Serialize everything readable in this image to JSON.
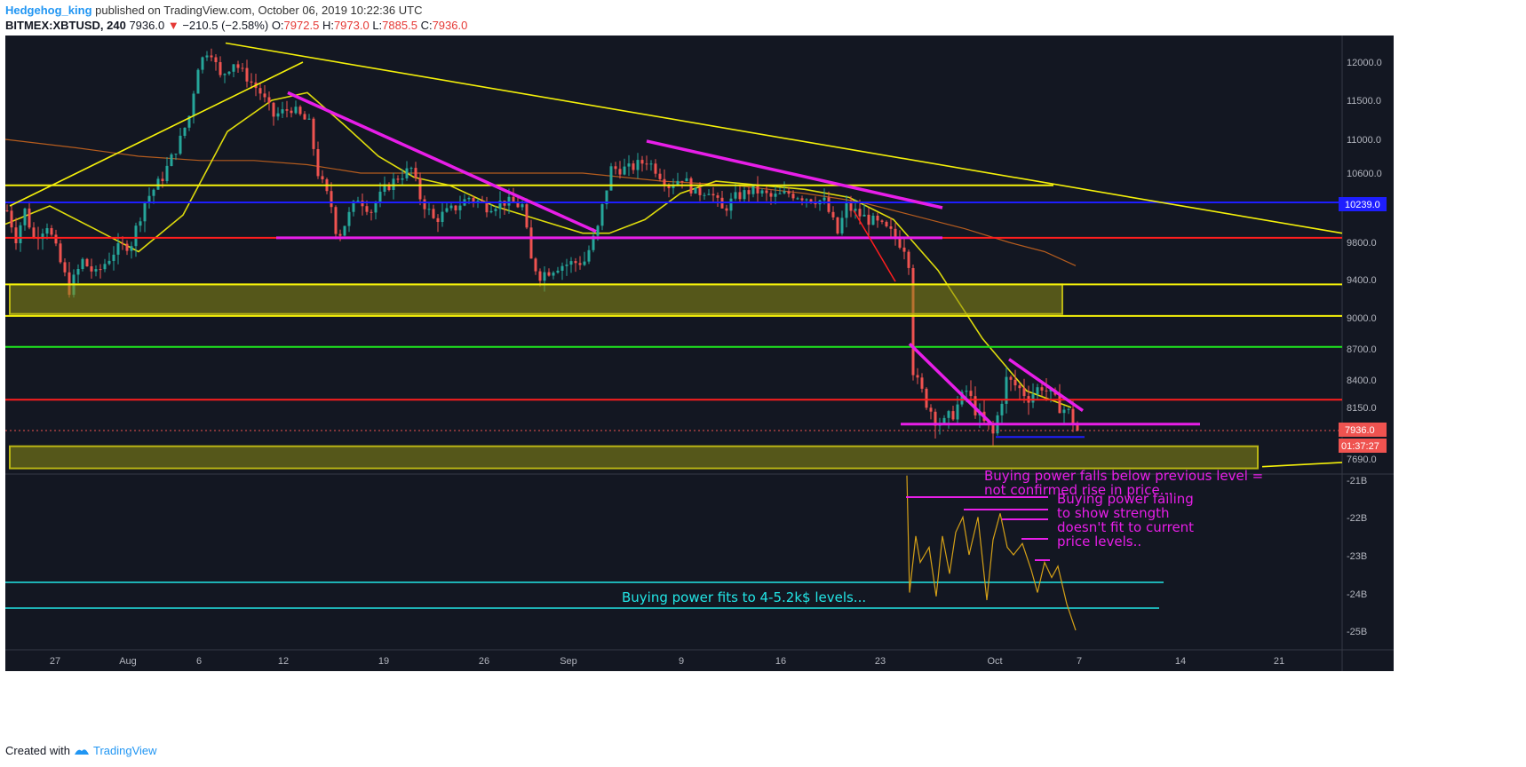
{
  "header": {
    "author": "Hedgehog_king",
    "published_text": "published on TradingView.com, October 06, 2019 10:22:36 UTC",
    "symbol": "BITMEX:XBTUSD, 240",
    "last": "7936.0",
    "change": "−210.5 (−2.58%)",
    "o_label": "O:",
    "o_val": "7972.5",
    "h_label": "H:",
    "h_val": "7973.0",
    "l_label": "L:",
    "l_val": "7885.5",
    "c_label": "C:",
    "c_val": "7936.0"
  },
  "footer": {
    "created_with": "Created with",
    "brand": "TradingView"
  },
  "colors": {
    "background": "#131722",
    "up_candle": "#26a69a",
    "down_candle": "#ef5350",
    "yellow": "#f5f10a",
    "magenta": "#e81ee8",
    "blue": "#1e1eff",
    "red": "#ff1e1e",
    "green": "#1ee81e",
    "cyan": "#22e6e6",
    "orange_ma": "#c8641e"
  },
  "chart_data": {
    "type": "candlestick",
    "price_axis_ticks": [
      "12000.0",
      "11500.0",
      "11000.0",
      "10600.0",
      "10200.0",
      "9800.0",
      "9400.0",
      "9000.0",
      "8700.0",
      "8400.0",
      "8150.0",
      "7690.0"
    ],
    "indicator_axis_ticks": [
      "-21B",
      "-22B",
      "-23B",
      "-24B",
      "-25B"
    ],
    "x_ticks": [
      "27",
      "Aug",
      "6",
      "12",
      "19",
      "26",
      "Sep",
      "9",
      "16",
      "23",
      "Oct",
      "7",
      "14",
      "21"
    ],
    "price_label": "7936.0",
    "level_label": "10239.0",
    "countdown": "01:37:27",
    "price_path": [
      [
        0,
        10150
      ],
      [
        10,
        9850
      ],
      [
        20,
        10150
      ],
      [
        30,
        9850
      ],
      [
        45,
        10000
      ],
      [
        70,
        9300
      ],
      [
        85,
        9600
      ],
      [
        100,
        9450
      ],
      [
        120,
        9700
      ],
      [
        140,
        9800
      ],
      [
        155,
        10250
      ],
      [
        175,
        10550
      ],
      [
        195,
        11000
      ],
      [
        205,
        11300
      ],
      [
        215,
        11950
      ],
      [
        228,
        12200
      ],
      [
        240,
        11800
      ],
      [
        255,
        12000
      ],
      [
        270,
        11800
      ],
      [
        285,
        11600
      ],
      [
        300,
        11300
      ],
      [
        320,
        11400
      ],
      [
        340,
        11200
      ],
      [
        350,
        10600
      ],
      [
        365,
        10200
      ],
      [
        372,
        9850
      ],
      [
        385,
        10100
      ],
      [
        395,
        10300
      ],
      [
        410,
        10150
      ],
      [
        425,
        10400
      ],
      [
        440,
        10550
      ],
      [
        455,
        10650
      ],
      [
        465,
        10300
      ],
      [
        480,
        10050
      ],
      [
        500,
        10150
      ],
      [
        520,
        10300
      ],
      [
        540,
        10200
      ],
      [
        560,
        10250
      ],
      [
        580,
        10200
      ],
      [
        590,
        9600
      ],
      [
        600,
        9450
      ],
      [
        620,
        9550
      ],
      [
        650,
        9600
      ],
      [
        665,
        9950
      ],
      [
        680,
        10650
      ],
      [
        700,
        10650
      ],
      [
        720,
        10750
      ],
      [
        730,
        10650
      ],
      [
        745,
        10450
      ],
      [
        760,
        10550
      ],
      [
        775,
        10350
      ],
      [
        790,
        10400
      ],
      [
        805,
        10150
      ],
      [
        820,
        10300
      ],
      [
        840,
        10400
      ],
      [
        860,
        10300
      ],
      [
        880,
        10350
      ],
      [
        900,
        10300
      ],
      [
        920,
        10250
      ],
      [
        935,
        9900
      ],
      [
        945,
        10200
      ],
      [
        960,
        10100
      ],
      [
        980,
        10000
      ],
      [
        995,
        9900
      ],
      [
        1010,
        9750
      ],
      [
        1018,
        9500
      ],
      [
        1020,
        8500
      ],
      [
        1023,
        8400
      ],
      [
        1035,
        8200
      ],
      [
        1045,
        8050
      ],
      [
        1055,
        8000
      ],
      [
        1065,
        8100
      ],
      [
        1080,
        8300
      ],
      [
        1095,
        8050
      ],
      [
        1110,
        7900
      ],
      [
        1125,
        8400
      ],
      [
        1135,
        8350
      ],
      [
        1150,
        8250
      ],
      [
        1165,
        8350
      ],
      [
        1180,
        8200
      ],
      [
        1195,
        8100
      ],
      [
        1205,
        7936
      ]
    ],
    "lines": [
      {
        "kind": "horizontal",
        "color": "yellow",
        "price": 10450,
        "from": 0,
        "to": 1180
      },
      {
        "kind": "horizontal",
        "color": "blue",
        "price": 10239,
        "from": 0,
        "to": 1505
      },
      {
        "kind": "horizontal",
        "color": "red",
        "price": 9850,
        "from": 0,
        "to": 1505
      },
      {
        "kind": "horizontal",
        "color": "yellow",
        "price": 9350,
        "from": 0,
        "to": 1505
      },
      {
        "kind": "horizontal",
        "color": "yellow",
        "price": 9020,
        "from": 0,
        "to": 1505
      },
      {
        "kind": "horizontal",
        "color": "green",
        "price": 8720,
        "from": 0,
        "to": 1505
      },
      {
        "kind": "horizontal",
        "color": "red",
        "price": 8220,
        "from": 0,
        "to": 1505
      },
      {
        "kind": "horizontal",
        "color": "magenta",
        "price": 9850,
        "from": 305,
        "to": 1055
      },
      {
        "kind": "horizontal",
        "color": "magenta",
        "price": 7995,
        "from": 1008,
        "to": 1345
      },
      {
        "kind": "horizontal",
        "color": "blue",
        "price": 7880,
        "from": 1115,
        "to": 1215
      }
    ],
    "trendlines": [
      {
        "color": "yellow",
        "p1": [
          5,
          10200
        ],
        "p2": [
          335,
          12000
        ]
      },
      {
        "color": "yellow",
        "p1": [
          248,
          12250
        ],
        "p2": [
          1505,
          9900
        ]
      },
      {
        "color": "magenta",
        "p1": [
          318,
          11600
        ],
        "p2": [
          665,
          9920
        ]
      },
      {
        "color": "magenta",
        "p1": [
          722,
          10980
        ],
        "p2": [
          1055,
          10180
        ]
      },
      {
        "color": "magenta",
        "p1": [
          1018,
          8750
        ],
        "p2": [
          1110,
          8000
        ]
      },
      {
        "color": "magenta",
        "p1": [
          1130,
          8600
        ],
        "p2": [
          1213,
          8120
        ]
      },
      {
        "color": "yellow",
        "p1": [
          1415,
          7600
        ],
        "p2": [
          1505,
          7650
        ]
      }
    ],
    "zones": [
      {
        "color": "olive",
        "price_top": 9350,
        "price_bottom": 9040,
        "from": 5,
        "to": 1190
      },
      {
        "color": "olive",
        "price_top": 7800,
        "price_bottom": 7580,
        "from": 5,
        "to": 1410
      }
    ],
    "indicator_path": [
      [
        1015,
        -20.9
      ],
      [
        1018,
        -24
      ],
      [
        1025,
        -22.5
      ],
      [
        1030,
        -23.2
      ],
      [
        1040,
        -22.8
      ],
      [
        1048,
        -24.1
      ],
      [
        1055,
        -22.5
      ],
      [
        1063,
        -23.5
      ],
      [
        1070,
        -22.4
      ],
      [
        1078,
        -22.0
      ],
      [
        1085,
        -23.0
      ],
      [
        1095,
        -22.0
      ],
      [
        1105,
        -24.2
      ],
      [
        1112,
        -22.6
      ],
      [
        1120,
        -21.9
      ],
      [
        1128,
        -22.8
      ],
      [
        1135,
        -23.0
      ],
      [
        1145,
        -22.7
      ],
      [
        1155,
        -23.4
      ],
      [
        1162,
        -24.0
      ],
      [
        1170,
        -23.2
      ],
      [
        1178,
        -23.6
      ],
      [
        1185,
        -23.3
      ],
      [
        1195,
        -24.3
      ],
      [
        1205,
        -25
      ]
    ],
    "ma_short": [
      [
        0,
        10000
      ],
      [
        50,
        10200
      ],
      [
        100,
        9950
      ],
      [
        150,
        9700
      ],
      [
        200,
        10100
      ],
      [
        250,
        11100
      ],
      [
        300,
        11500
      ],
      [
        340,
        11600
      ],
      [
        380,
        11200
      ],
      [
        420,
        10800
      ],
      [
        460,
        10550
      ],
      [
        500,
        10450
      ],
      [
        550,
        10200
      ],
      [
        600,
        10050
      ],
      [
        650,
        9900
      ],
      [
        680,
        9900
      ],
      [
        720,
        10050
      ],
      [
        760,
        10350
      ],
      [
        800,
        10500
      ],
      [
        850,
        10450
      ],
      [
        900,
        10400
      ],
      [
        950,
        10300
      ],
      [
        1000,
        10050
      ],
      [
        1050,
        9500
      ],
      [
        1100,
        8800
      ],
      [
        1150,
        8300
      ],
      [
        1200,
        8150
      ]
    ],
    "ma_long": [
      [
        0,
        11000
      ],
      [
        80,
        10900
      ],
      [
        150,
        10800
      ],
      [
        220,
        10750
      ],
      [
        280,
        10750
      ],
      [
        340,
        10700
      ],
      [
        400,
        10600
      ],
      [
        480,
        10600
      ],
      [
        560,
        10600
      ],
      [
        650,
        10600
      ],
      [
        740,
        10500
      ],
      [
        820,
        10450
      ],
      [
        900,
        10350
      ],
      [
        960,
        10250
      ],
      [
        1020,
        10100
      ],
      [
        1080,
        9950
      ],
      [
        1130,
        9800
      ],
      [
        1170,
        9700
      ],
      [
        1205,
        9550
      ]
    ],
    "annotations": [
      {
        "text": "Buying power falls below previous level = not confirmed rise in price...",
        "color": "magenta"
      },
      {
        "text": "Buying power failing to show strength doesn't fit to current price levels..",
        "color": "magenta"
      },
      {
        "text": "Buying power fits to 4-5.2k$ levels...",
        "color": "cyan"
      }
    ]
  },
  "annotation_lines": {
    "a1_l1": "Buying power falls below previous level =",
    "a1_l2": "not confirmed rise in price...",
    "a2_l1": "Buying power failing",
    "a2_l2": "to show strength",
    "a2_l3": "doesn't fit to current",
    "a2_l4": "price levels..",
    "a3": "Buying power fits to 4-5.2k$ levels..."
  }
}
